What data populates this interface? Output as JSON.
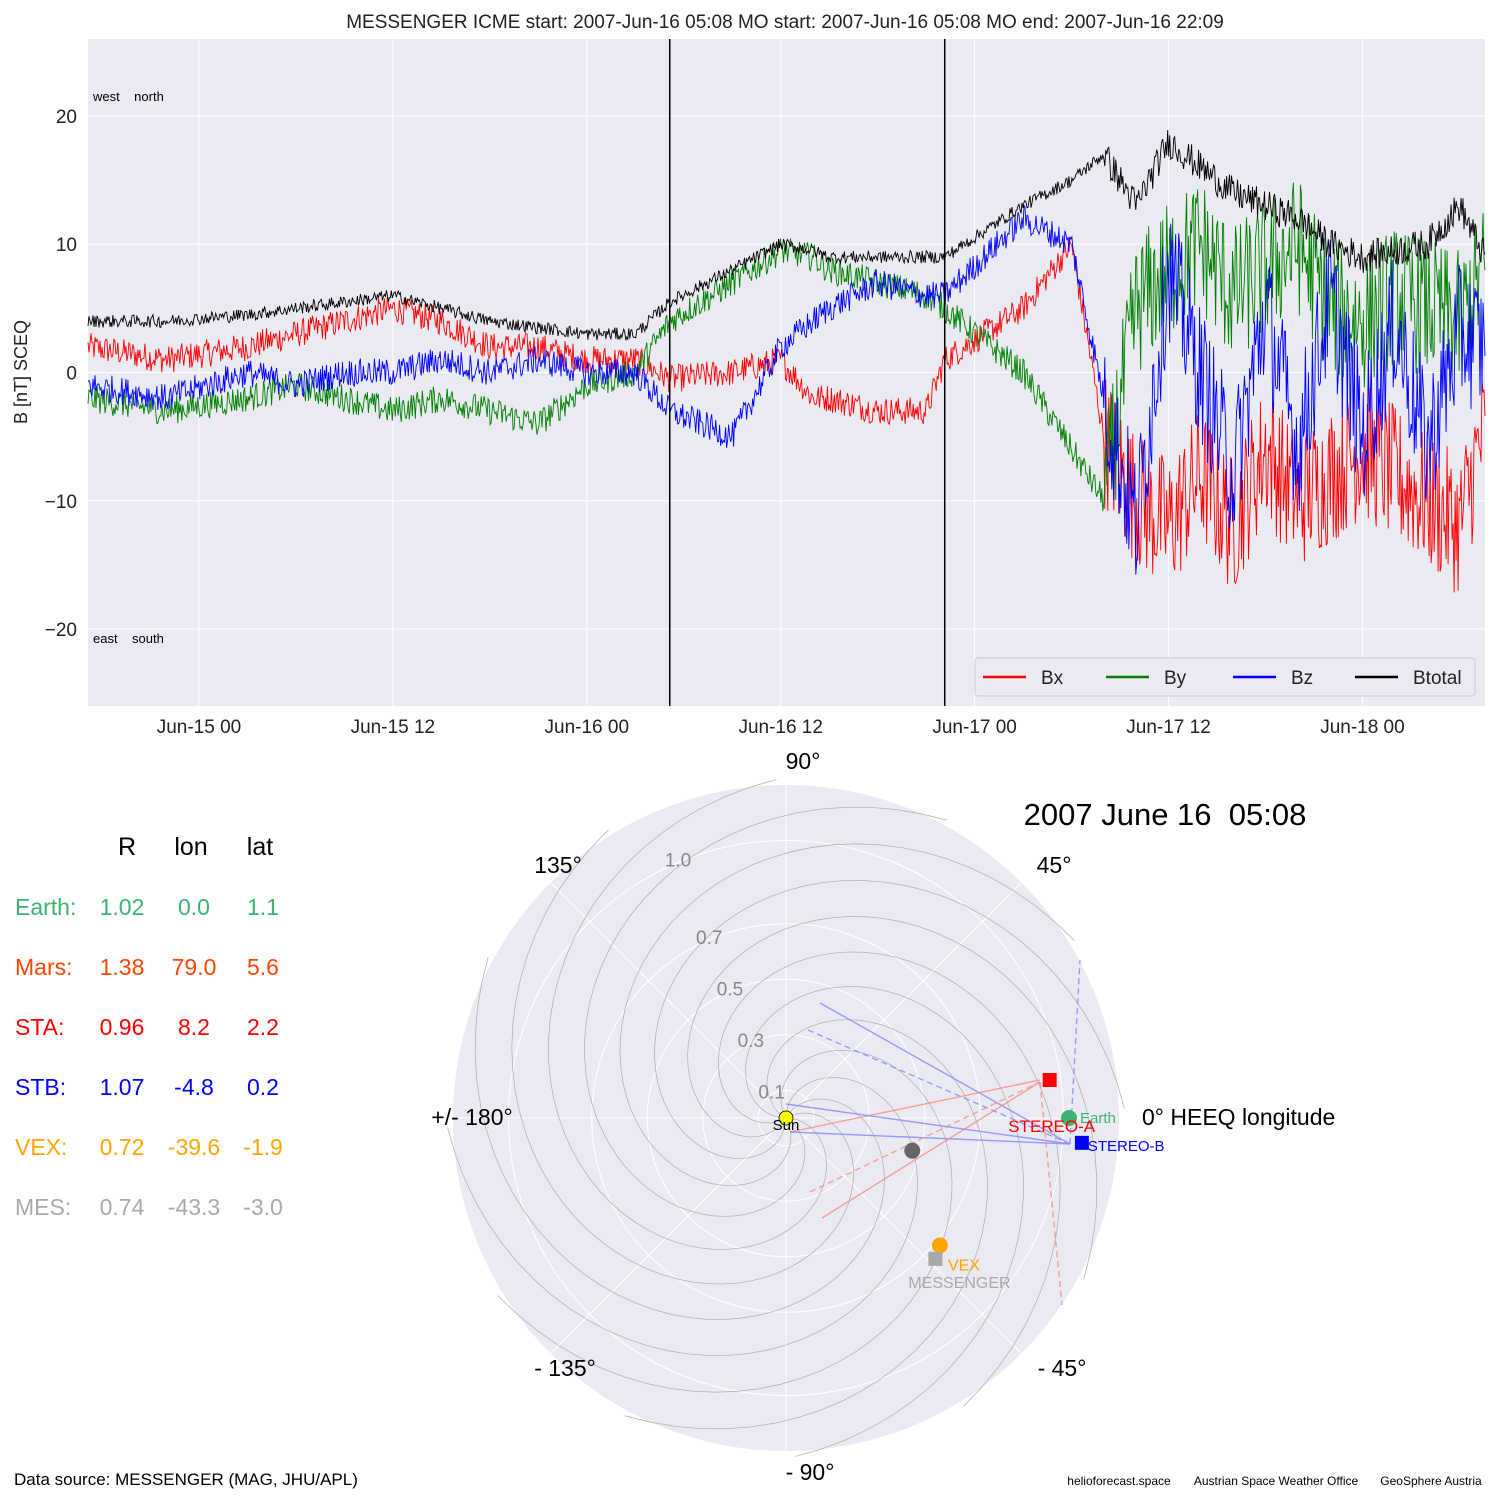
{
  "chart_data": [
    {
      "type": "line",
      "title": "MESSENGER    ICME start: 2007-Jun-16 05:08   MO start: 2007-Jun-16 05:08   MO end: 2007-Jun-16 22:09",
      "ylabel": "B [nT] SCEQ",
      "xlabel": "",
      "ylim": [
        -26,
        26
      ],
      "xlim": [
        "2007-06-14 17:08",
        "2007-06-18 07:35"
      ],
      "yticks": [
        -20,
        -10,
        0,
        10,
        20
      ],
      "ytick_labels": [
        "−20",
        "−10",
        "0",
        "10",
        "20"
      ],
      "xticks": [
        "2007-06-15 00:00",
        "2007-06-15 12:00",
        "2007-06-16 00:00",
        "2007-06-16 12:00",
        "2007-06-17 00:00",
        "2007-06-17 12:00",
        "2007-06-18 00:00"
      ],
      "xtick_labels": [
        "Jun-15 00",
        "Jun-15 12",
        "Jun-16 00",
        "Jun-16 12",
        "Jun-17 00",
        "Jun-17 12",
        "Jun-18 00"
      ],
      "grid": true,
      "legend": "bottom-right",
      "annotations": {
        "top": "west    north",
        "bottom": "east    south"
      },
      "vlines": [
        "2007-06-16 05:08",
        "2007-06-16 22:09"
      ],
      "series": [
        {
          "name": "Bx",
          "color": "#ff0000",
          "x": [
            "2007-06-14 17:08",
            "2007-06-14 22:00",
            "2007-06-15 03:00",
            "2007-06-15 06:00",
            "2007-06-15 09:00",
            "2007-06-15 12:00",
            "2007-06-15 15:00",
            "2007-06-15 18:00",
            "2007-06-15 21:00",
            "2007-06-16 00:00",
            "2007-06-16 03:00",
            "2007-06-16 05:08",
            "2007-06-16 09:00",
            "2007-06-16 12:00",
            "2007-06-16 14:00",
            "2007-06-16 15:00",
            "2007-06-16 18:00",
            "2007-06-16 21:00",
            "2007-06-16 22:09",
            "2007-06-17 03:00",
            "2007-06-17 06:00",
            "2007-06-17 08:00",
            "2007-06-17 10:00",
            "2007-06-17 12:00",
            "2007-06-17 14:00",
            "2007-06-17 16:00",
            "2007-06-17 18:00",
            "2007-06-17 20:00",
            "2007-06-17 22:00",
            "2007-06-18 00:00",
            "2007-06-18 02:00",
            "2007-06-18 04:00",
            "2007-06-18 06:00",
            "2007-06-18 07:35"
          ],
          "values": [
            2,
            1,
            2,
            3,
            4,
            5,
            4,
            2,
            2,
            1,
            1,
            -0.5,
            0,
            1,
            -2,
            -2,
            -3,
            -3,
            1,
            5,
            10,
            -5,
            -10,
            -12,
            -8,
            -12,
            -6,
            -10,
            -8,
            -6,
            -8,
            -10,
            -12,
            -4
          ]
        },
        {
          "name": "By",
          "color": "#008000",
          "x": [
            "2007-06-14 17:08",
            "2007-06-14 22:00",
            "2007-06-15 03:00",
            "2007-06-15 06:00",
            "2007-06-15 09:00",
            "2007-06-15 12:00",
            "2007-06-15 15:00",
            "2007-06-15 18:00",
            "2007-06-15 21:00",
            "2007-06-16 00:00",
            "2007-06-16 03:00",
            "2007-06-16 05:08",
            "2007-06-16 09:00",
            "2007-06-16 12:00",
            "2007-06-16 14:00",
            "2007-06-16 15:00",
            "2007-06-16 18:00",
            "2007-06-16 21:00",
            "2007-06-16 22:09",
            "2007-06-17 03:00",
            "2007-06-17 06:00",
            "2007-06-17 08:00",
            "2007-06-17 10:00",
            "2007-06-17 12:00",
            "2007-06-17 14:00",
            "2007-06-17 16:00",
            "2007-06-17 18:00",
            "2007-06-17 20:00",
            "2007-06-17 22:00",
            "2007-06-18 00:00",
            "2007-06-18 02:00",
            "2007-06-18 04:00",
            "2007-06-18 06:00",
            "2007-06-18 07:35"
          ],
          "values": [
            -2,
            -3,
            -2,
            -1,
            -2,
            -3,
            -2,
            -3,
            -4,
            -1,
            0,
            4,
            7,
            9.5,
            9,
            8,
            7,
            6,
            5,
            0,
            -6,
            -10,
            5,
            8,
            10,
            6,
            8,
            10,
            5,
            4,
            6,
            5,
            4,
            8
          ]
        },
        {
          "name": "Bz",
          "color": "#0000ff",
          "x": [
            "2007-06-14 17:08",
            "2007-06-14 22:00",
            "2007-06-15 03:00",
            "2007-06-15 06:00",
            "2007-06-15 09:00",
            "2007-06-15 12:00",
            "2007-06-15 15:00",
            "2007-06-15 18:00",
            "2007-06-15 21:00",
            "2007-06-16 00:00",
            "2007-06-16 03:00",
            "2007-06-16 05:08",
            "2007-06-16 09:00",
            "2007-06-16 12:00",
            "2007-06-16 14:00",
            "2007-06-16 15:00",
            "2007-06-16 18:00",
            "2007-06-16 21:00",
            "2007-06-16 22:09",
            "2007-06-17 03:00",
            "2007-06-17 06:00",
            "2007-06-17 08:00",
            "2007-06-17 10:00",
            "2007-06-17 12:00",
            "2007-06-17 14:00",
            "2007-06-17 16:00",
            "2007-06-17 18:00",
            "2007-06-17 20:00",
            "2007-06-17 22:00",
            "2007-06-18 00:00",
            "2007-06-18 02:00",
            "2007-06-18 04:00",
            "2007-06-18 06:00",
            "2007-06-18 07:35"
          ],
          "values": [
            -1,
            -2,
            0,
            -1,
            0,
            0,
            1,
            0,
            1,
            0,
            0,
            -3,
            -5,
            2,
            4,
            5,
            7,
            6,
            6,
            12,
            10,
            -2,
            -12,
            8,
            0,
            -8,
            5,
            -6,
            6,
            -5,
            4,
            -6,
            3,
            2
          ]
        },
        {
          "name": "Btotal",
          "color": "#000000",
          "x": [
            "2007-06-14 17:08",
            "2007-06-14 22:00",
            "2007-06-15 03:00",
            "2007-06-15 06:00",
            "2007-06-15 09:00",
            "2007-06-15 12:00",
            "2007-06-15 15:00",
            "2007-06-15 18:00",
            "2007-06-15 21:00",
            "2007-06-16 00:00",
            "2007-06-16 03:00",
            "2007-06-16 05:08",
            "2007-06-16 09:00",
            "2007-06-16 12:00",
            "2007-06-16 14:00",
            "2007-06-16 15:00",
            "2007-06-16 18:00",
            "2007-06-16 21:00",
            "2007-06-16 22:09",
            "2007-06-17 03:00",
            "2007-06-17 06:00",
            "2007-06-17 08:00",
            "2007-06-17 10:00",
            "2007-06-17 12:00",
            "2007-06-17 14:00",
            "2007-06-17 16:00",
            "2007-06-17 18:00",
            "2007-06-17 20:00",
            "2007-06-17 22:00",
            "2007-06-18 00:00",
            "2007-06-18 02:00",
            "2007-06-18 04:00",
            "2007-06-18 06:00",
            "2007-06-18 07:35"
          ],
          "values": [
            4,
            4,
            4.5,
            5,
            5.5,
            6,
            5,
            4,
            3.5,
            3,
            3,
            5.5,
            8,
            10,
            9.5,
            9,
            9,
            9,
            9,
            13,
            15,
            17,
            13,
            18,
            16,
            14,
            13,
            12,
            10,
            9,
            9.5,
            10,
            13,
            9
          ]
        }
      ]
    },
    {
      "type": "scatter",
      "title": "2007 June 16  05:08",
      "xlabel": "0° HEEQ longitude",
      "ylabel": "",
      "polar": true,
      "rlim": [
        0,
        1.2
      ],
      "rticks": [
        0.1,
        0.3,
        0.5,
        0.7,
        1.0
      ],
      "rtick_labels": [
        "0.1",
        "0.3",
        "0.5",
        "0.7",
        "1.0"
      ],
      "angle_labels": {
        "0": "0° HEEQ longitude",
        "45": "45°",
        "90": "90°",
        "135": "135°",
        "180": "+/- 180°",
        "-135": "- 135°",
        "-90": "- 90°",
        "-45": "- 45°"
      },
      "points": [
        {
          "name": "Sun",
          "r": 0.0,
          "lon": 0.0,
          "color": "#ffff00",
          "marker": "circle"
        },
        {
          "name": "Earth",
          "r": 1.02,
          "lon": 0.0,
          "color": "#3cb371",
          "marker": "circle"
        },
        {
          "name": "STEREO-A",
          "r": 0.96,
          "lon": 8.2,
          "color": "#ff0000",
          "marker": "square"
        },
        {
          "name": "STEREO-B",
          "r": 1.07,
          "lon": -4.8,
          "color": "#0000ff",
          "marker": "square"
        },
        {
          "name": "VEX",
          "r": 0.72,
          "lon": -39.6,
          "color": "#ffa500",
          "marker": "circle"
        },
        {
          "name": "MESSENGER",
          "r": 0.74,
          "lon": -43.3,
          "color": "#a9a9a9",
          "marker": "square"
        },
        {
          "name": "",
          "r": 0.47,
          "lon": -14.5,
          "color": "#666666",
          "marker": "circle"
        }
      ]
    }
  ],
  "table": {
    "headers": [
      "R",
      "lon",
      "lat"
    ],
    "rows": [
      {
        "label": "Earth:",
        "r": "1.02",
        "lon": "0.0",
        "lat": "1.1",
        "color": "#3cb371"
      },
      {
        "label": "Mars:",
        "r": "1.38",
        "lon": "79.0",
        "lat": "5.6",
        "color": "#ff4500"
      },
      {
        "label": "STA:",
        "r": "0.96",
        "lon": "8.2",
        "lat": "2.2",
        "color": "#ff0000"
      },
      {
        "label": "STB:",
        "r": "1.07",
        "lon": "-4.8",
        "lat": "0.2",
        "color": "#0000ff"
      },
      {
        "label": "VEX:",
        "r": "0.72",
        "lon": "-39.6",
        "lat": "-1.9",
        "color": "#ffa500"
      },
      {
        "label": "MES:",
        "r": "0.74",
        "lon": "-43.3",
        "lat": "-3.0",
        "color": "#a9a9a9"
      }
    ]
  },
  "footer": {
    "source": "Data source: MESSENGER (MAG, JHU/APL)",
    "credits": [
      "helioforecast.space",
      "Austrian Space Weather Office",
      "GeoSphere Austria"
    ]
  },
  "colors": {
    "panel_bg": "#eaeaf2",
    "grid": "#ffffff"
  }
}
